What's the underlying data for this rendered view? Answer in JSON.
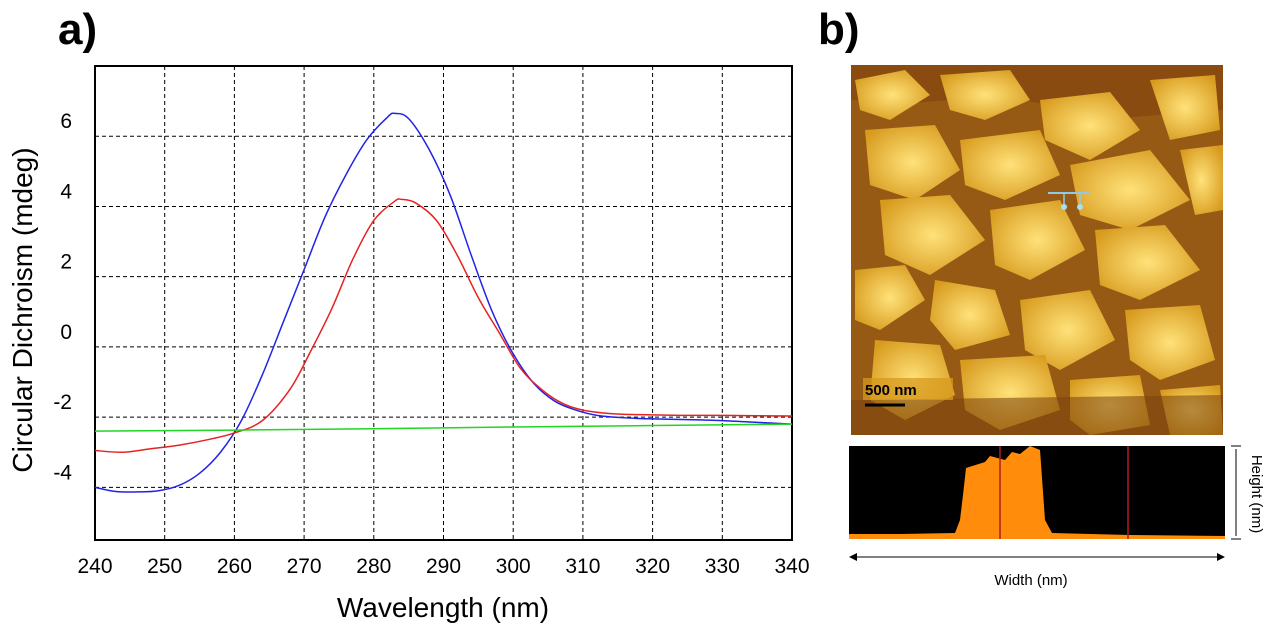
{
  "panels": {
    "a_label": "a)",
    "b_label": "b)"
  },
  "chart_data": {
    "type": "line",
    "title": "",
    "xlabel": "Wavelength (nm)",
    "ylabel": "Circular Dichroism (mdeg)",
    "xlim": [
      240,
      340
    ],
    "ylim": [
      -5.5,
      8
    ],
    "grid": true,
    "x_ticks": [
      240,
      250,
      260,
      270,
      280,
      290,
      300,
      310,
      320,
      330,
      340
    ],
    "y_ticks": [
      -4,
      -2,
      0,
      2,
      4,
      6
    ],
    "series": [
      {
        "name": "blue",
        "color": "#2323e6",
        "x": [
          240,
          243,
          246,
          249,
          252,
          255,
          258,
          261,
          264,
          267,
          270,
          273,
          276,
          279,
          282,
          283,
          285,
          288,
          291,
          294,
          297,
          300,
          303,
          306,
          309,
          312,
          316,
          320,
          325,
          330,
          335,
          340
        ],
        "y": [
          -4.0,
          -4.12,
          -4.13,
          -4.1,
          -3.95,
          -3.6,
          -3.0,
          -2.1,
          -0.8,
          0.7,
          2.2,
          3.7,
          4.9,
          5.9,
          6.55,
          6.65,
          6.5,
          5.6,
          4.3,
          2.6,
          1.0,
          -0.2,
          -1.05,
          -1.55,
          -1.8,
          -1.95,
          -2.02,
          -2.05,
          -2.07,
          -2.1,
          -2.15,
          -2.2
        ]
      },
      {
        "name": "red",
        "color": "#e62323",
        "x": [
          240,
          244,
          248,
          252,
          256,
          260,
          264,
          268,
          271,
          274,
          277,
          280,
          283,
          284,
          286,
          289,
          292,
          295,
          298,
          301,
          304,
          307,
          310,
          314,
          318,
          324,
          330,
          335,
          340
        ],
        "y": [
          -2.95,
          -3.0,
          -2.9,
          -2.8,
          -2.65,
          -2.45,
          -2.1,
          -1.2,
          -0.1,
          1.1,
          2.5,
          3.6,
          4.15,
          4.2,
          4.1,
          3.6,
          2.6,
          1.4,
          0.4,
          -0.6,
          -1.2,
          -1.6,
          -1.8,
          -1.9,
          -1.93,
          -1.95,
          -1.95,
          -1.96,
          -1.97
        ]
      },
      {
        "name": "green",
        "color": "#23d623",
        "x": [
          240,
          260,
          280,
          300,
          320,
          340
        ],
        "y": [
          -2.4,
          -2.37,
          -2.33,
          -2.28,
          -2.24,
          -2.2
        ]
      }
    ]
  },
  "afm": {
    "scale_bar_label": "500 nm",
    "profile_x_label": "Width (nm)",
    "profile_y_label": "Height (nm)"
  }
}
